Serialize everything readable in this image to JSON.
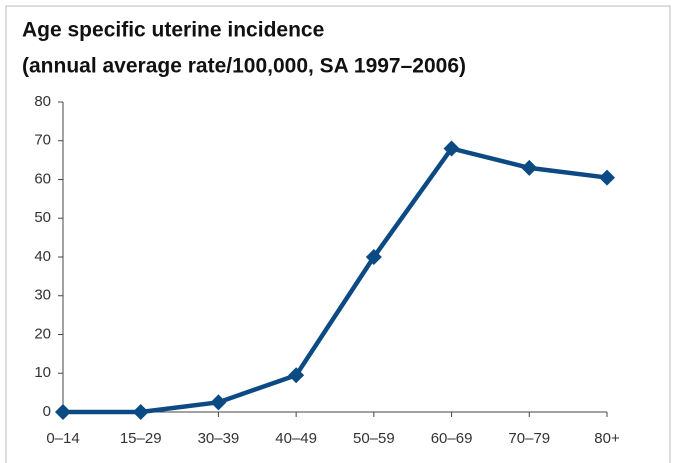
{
  "chart_data": {
    "type": "line",
    "title": "Age specific uterine incidence",
    "subtitle": "(annual average rate/100,000, SA 1997–2006)",
    "categories": [
      "0–14",
      "15–29",
      "30–39",
      "40–49",
      "50–59",
      "60–69",
      "70–79",
      "80+"
    ],
    "values": [
      0,
      0,
      2.5,
      9.5,
      40,
      68,
      63,
      60.5
    ],
    "color": "#0b4a82",
    "ylim": [
      0,
      80
    ],
    "yticks": [
      0,
      10,
      20,
      30,
      40,
      50,
      60,
      70,
      80
    ],
    "grid": false
  }
}
